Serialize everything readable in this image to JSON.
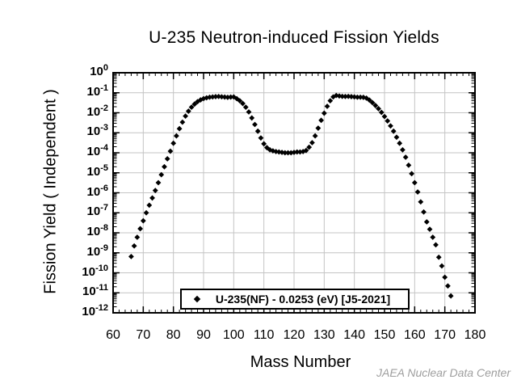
{
  "chart_data": {
    "type": "scatter",
    "title": "U-235  Neutron-induced Fission Yields",
    "xlabel": "Mass Number",
    "ylabel": "Fission Yield ( Independent )",
    "attribution": "JAEA Nuclear Data Center",
    "x_axis": {
      "min": 60,
      "max": 180,
      "major_tick_step": 10,
      "minor_tick_step": 2,
      "tick_labels": [
        "60",
        "70",
        "80",
        "90",
        "100",
        "110",
        "120",
        "130",
        "140",
        "150",
        "160",
        "170",
        "180"
      ]
    },
    "y_axis": {
      "scale": "log",
      "top_exponent": 0,
      "bottom_exponent": -12,
      "tick_exponents": [
        0,
        -1,
        -2,
        -3,
        -4,
        -5,
        -6,
        -7,
        -8,
        -9,
        -10,
        -11,
        -12
      ],
      "tick_base": "10"
    },
    "grid": {
      "show": true,
      "color": "#c4c4c4"
    },
    "frame_color": "#000000",
    "legend": {
      "label": "U-235(NF) - 0.0253 (eV)  [J5-2021]",
      "marker": "filled-diamond",
      "position": "bottom-center"
    },
    "series": [
      {
        "name": "U-235(NF) - 0.0253 (eV) [J5-2021]",
        "marker": "diamond",
        "color": "#000000",
        "points": [
          [
            66,
            6.5e-10
          ],
          [
            67,
            2.2e-09
          ],
          [
            68,
            6e-09
          ],
          [
            69,
            1.6e-08
          ],
          [
            70,
            4e-08
          ],
          [
            71,
            1e-07
          ],
          [
            72,
            2.4e-07
          ],
          [
            73,
            5.5e-07
          ],
          [
            74,
            1.3e-06
          ],
          [
            75,
            3.2e-06
          ],
          [
            76,
            8e-06
          ],
          [
            77,
            2e-05
          ],
          [
            78,
            5e-05
          ],
          [
            79,
            0.00012
          ],
          [
            80,
            0.0003
          ],
          [
            81,
            0.0007
          ],
          [
            82,
            0.0016
          ],
          [
            83,
            0.0034
          ],
          [
            84,
            0.0068
          ],
          [
            85,
            0.012
          ],
          [
            86,
            0.019
          ],
          [
            87,
            0.027
          ],
          [
            88,
            0.036
          ],
          [
            89,
            0.044
          ],
          [
            90,
            0.051
          ],
          [
            91,
            0.056
          ],
          [
            92,
            0.06
          ],
          [
            93,
            0.062
          ],
          [
            94,
            0.064
          ],
          [
            95,
            0.065
          ],
          [
            96,
            0.063
          ],
          [
            97,
            0.061
          ],
          [
            98,
            0.059
          ],
          [
            99,
            0.061
          ],
          [
            100,
            0.062
          ],
          [
            101,
            0.051
          ],
          [
            102,
            0.04
          ],
          [
            103,
            0.029
          ],
          [
            104,
            0.019
          ],
          [
            105,
            0.011
          ],
          [
            106,
            0.0055
          ],
          [
            107,
            0.0026
          ],
          [
            108,
            0.0012
          ],
          [
            109,
            0.00055
          ],
          [
            110,
            0.00028
          ],
          [
            111,
            0.00018
          ],
          [
            112,
            0.00014
          ],
          [
            113,
            0.000125
          ],
          [
            114,
            0.000115
          ],
          [
            115,
            0.00011
          ],
          [
            116,
            0.000105
          ],
          [
            117,
            0.0001
          ],
          [
            118,
            0.0001
          ],
          [
            119,
            0.0001
          ],
          [
            120,
            0.000105
          ],
          [
            121,
            0.00011
          ],
          [
            122,
            0.00011
          ],
          [
            123,
            0.000115
          ],
          [
            124,
            0.00013
          ],
          [
            125,
            0.00019
          ],
          [
            126,
            0.00032
          ],
          [
            127,
            0.0007
          ],
          [
            128,
            0.0017
          ],
          [
            129,
            0.0042
          ],
          [
            130,
            0.0095
          ],
          [
            131,
            0.021
          ],
          [
            132,
            0.04
          ],
          [
            133,
            0.062
          ],
          [
            134,
            0.073
          ],
          [
            135,
            0.069
          ],
          [
            136,
            0.066
          ],
          [
            137,
            0.065
          ],
          [
            138,
            0.066
          ],
          [
            139,
            0.064
          ],
          [
            140,
            0.062
          ],
          [
            141,
            0.06
          ],
          [
            142,
            0.06
          ],
          [
            143,
            0.059
          ],
          [
            144,
            0.054
          ],
          [
            145,
            0.043
          ],
          [
            146,
            0.032
          ],
          [
            147,
            0.023
          ],
          [
            148,
            0.016
          ],
          [
            149,
            0.0105
          ],
          [
            150,
            0.0065
          ],
          [
            151,
            0.0039
          ],
          [
            152,
            0.0022
          ],
          [
            153,
            0.0012
          ],
          [
            154,
            0.0006
          ],
          [
            155,
            0.0003
          ],
          [
            156,
            0.00014
          ],
          [
            157,
            6e-05
          ],
          [
            158,
            2.4e-05
          ],
          [
            159,
            9e-06
          ],
          [
            160,
            3.2e-06
          ],
          [
            161,
            1.1e-06
          ],
          [
            162,
            3.5e-07
          ],
          [
            163,
            1.1e-07
          ],
          [
            164,
            3.5e-08
          ],
          [
            165,
            1.5e-08
          ],
          [
            166,
            6e-09
          ],
          [
            167,
            2.5e-09
          ],
          [
            168,
            6e-10
          ],
          [
            169,
            2.2e-10
          ],
          [
            170,
            6e-11
          ],
          [
            171,
            2.2e-11
          ],
          [
            172,
            7e-12
          ]
        ]
      }
    ]
  }
}
